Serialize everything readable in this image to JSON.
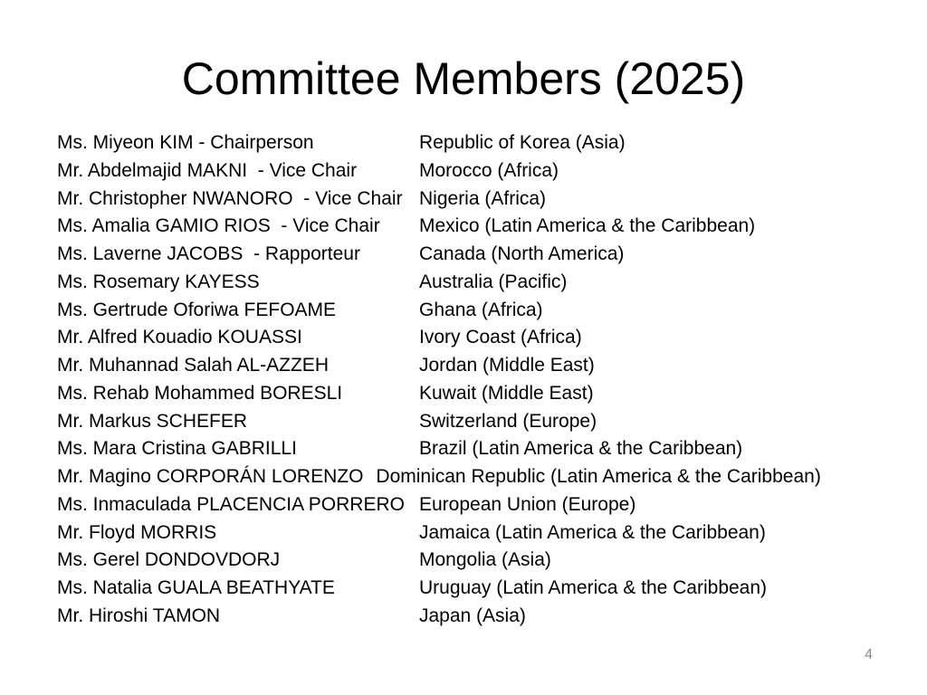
{
  "slide": {
    "title": "Committee Members (2025)",
    "page_number": "4",
    "background_color": "#ffffff",
    "text_color": "#000000",
    "page_number_color": "#8a8a8a",
    "members": [
      {
        "name": "Ms. Miyeon KIM - Chairperson",
        "country": "Republic of Korea (Asia)"
      },
      {
        "name": "Mr. Abdelmajid MAKNI  - Vice Chair",
        "country": "Morocco (Africa)"
      },
      {
        "name": "Mr. Christopher NWANORO  - Vice Chair",
        "country": "Nigeria (Africa)"
      },
      {
        "name": "Ms. Amalia GAMIO RIOS  - Vice Chair",
        "country": "Mexico (Latin America & the Caribbean)"
      },
      {
        "name": "Ms. Laverne JACOBS  - Rapporteur",
        "country": "Canada (North America)"
      },
      {
        "name": "Ms. Rosemary KAYESS",
        "country": "Australia (Pacific)"
      },
      {
        "name": "Ms. Gertrude Oforiwa FEFOAME",
        "country": "Ghana (Africa)"
      },
      {
        "name": "Mr. Alfred Kouadio KOUASSI",
        "country": "Ivory Coast (Africa)"
      },
      {
        "name": "Mr. Muhannad Salah AL-AZZEH",
        "country": "Jordan (Middle East)"
      },
      {
        "name": "Ms. Rehab Mohammed BORESLI",
        "country": "Kuwait (Middle East)"
      },
      {
        "name": "Mr. Markus SCHEFER",
        "country": "Switzerland (Europe)"
      },
      {
        "name": "Ms. Mara Cristina GABRILLI",
        "country": "Brazil (Latin America & the Caribbean)"
      },
      {
        "name": "Mr. Magino CORPORÁN LORENZO",
        "country": "Dominican Republic (Latin America & the Caribbean)"
      },
      {
        "name": "Ms. Inmaculada PLACENCIA PORRERO",
        "country": "European Union (Europe)"
      },
      {
        "name": "Mr. Floyd MORRIS",
        "country": "Jamaica (Latin America & the Caribbean)"
      },
      {
        "name": "Ms. Gerel DONDOVDORJ",
        "country": "Mongolia (Asia)"
      },
      {
        "name": "Ms. Natalia GUALA BEATHYATE",
        "country": "Uruguay (Latin America & the Caribbean)"
      },
      {
        "name": "Mr. Hiroshi TAMON",
        "country": "Japan (Asia)"
      }
    ]
  }
}
